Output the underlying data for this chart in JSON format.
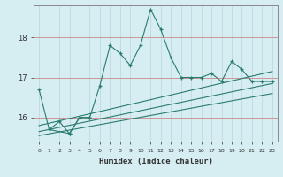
{
  "xlabel": "Humidex (Indice chaleur)",
  "bg_color": "#d6eef2",
  "grid_color": "#c8e0e8",
  "line_color": "#2a7b6e",
  "xlim": [
    -0.5,
    23.5
  ],
  "ylim": [
    15.4,
    18.8
  ],
  "yticks": [
    16,
    17,
    18
  ],
  "xticks": [
    0,
    1,
    2,
    3,
    4,
    5,
    6,
    7,
    8,
    9,
    10,
    11,
    12,
    13,
    14,
    15,
    16,
    17,
    18,
    19,
    20,
    21,
    22,
    23
  ],
  "series1_x": [
    0,
    1,
    3,
    4,
    5,
    6,
    7,
    8,
    9,
    10,
    11,
    12,
    13,
    14,
    15,
    16,
    17,
    18,
    19,
    20,
    21,
    22,
    23
  ],
  "series1_y": [
    16.7,
    15.7,
    15.6,
    16.0,
    16.0,
    16.8,
    17.8,
    17.6,
    17.3,
    17.8,
    18.7,
    18.2,
    17.5,
    17.0,
    17.0,
    17.0,
    17.1,
    16.9,
    17.4,
    17.2,
    16.9,
    16.9,
    16.9
  ],
  "series2_x": [
    1,
    2,
    3,
    4,
    5
  ],
  "series2_y": [
    15.7,
    15.9,
    15.6,
    16.0,
    16.0
  ],
  "trend1_x": [
    0,
    23
  ],
  "trend1_y": [
    15.8,
    17.15
  ],
  "trend2_x": [
    0,
    23
  ],
  "trend2_y": [
    15.65,
    16.85
  ],
  "trend3_x": [
    0,
    23
  ],
  "trend3_y": [
    15.55,
    16.6
  ]
}
